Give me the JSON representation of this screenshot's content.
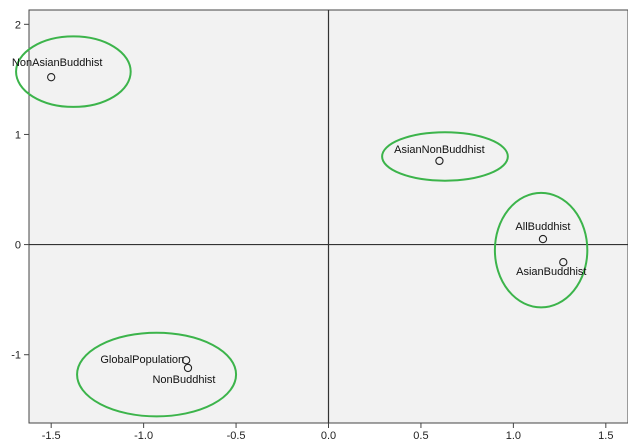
{
  "chart_data": {
    "type": "scatter",
    "title": "",
    "xlabel": "",
    "ylabel": "",
    "xlim": [
      -1.62,
      1.62
    ],
    "ylim": [
      -1.62,
      2.13
    ],
    "xticks": [
      -1.5,
      -1.0,
      -0.5,
      0.0,
      0.5,
      1.0,
      1.5
    ],
    "xtick_labels": [
      "-1.5",
      "-1.0",
      "-0.5",
      "0.0",
      "0.5",
      "1.0",
      "1.5"
    ],
    "yticks": [
      -1,
      0,
      1,
      2
    ],
    "ytick_labels": [
      "-1",
      "0",
      "1",
      "2"
    ],
    "grid": false,
    "plot_background": "#f2f2f2",
    "reference_lines": {
      "x": 0,
      "y": 0,
      "color": "#333333"
    },
    "points": [
      {
        "label": "NonAsianBuddhist",
        "x": -1.5,
        "y": 1.52
      },
      {
        "label": "AsianNonBuddhist",
        "x": 0.6,
        "y": 0.76
      },
      {
        "label": "AllBuddhist",
        "x": 1.16,
        "y": 0.05
      },
      {
        "label": "AsianBuddhist",
        "x": 1.27,
        "y": -0.16
      },
      {
        "label": "GlobalPopulation",
        "x": -0.77,
        "y": -1.05
      },
      {
        "label": "NonBuddhist",
        "x": -0.76,
        "y": -1.12
      }
    ],
    "clusters": [
      {
        "cx": -1.38,
        "cy": 1.57,
        "rx": 0.31,
        "ry": 0.32
      },
      {
        "cx": 0.63,
        "cy": 0.8,
        "rx": 0.34,
        "ry": 0.22
      },
      {
        "cx": 1.15,
        "cy": -0.05,
        "rx": 0.25,
        "ry": 0.52
      },
      {
        "cx": -0.93,
        "cy": -1.18,
        "rx": 0.43,
        "ry": 0.38
      }
    ],
    "cluster_color": "#3cb44b"
  }
}
